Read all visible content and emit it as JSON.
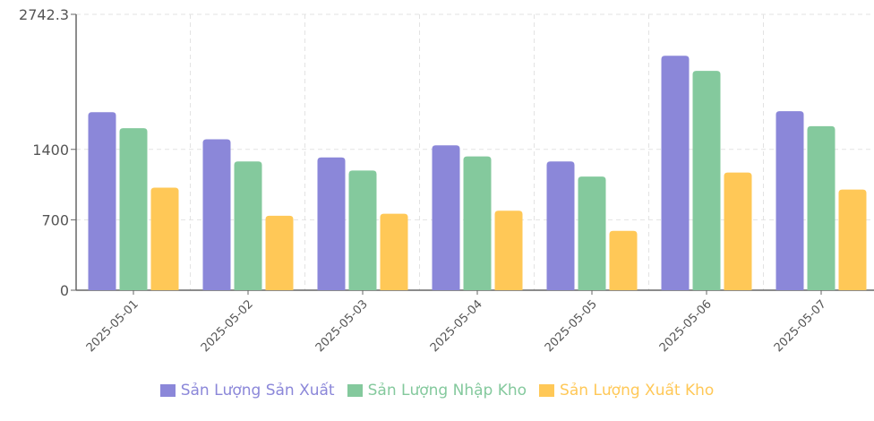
{
  "chart_data": {
    "type": "bar",
    "categories": [
      "2025-05-01",
      "2025-05-02",
      "2025-05-03",
      "2025-05-04",
      "2025-05-05",
      "2025-05-06",
      "2025-05-07"
    ],
    "series": [
      {
        "name": "Sản Lượng Sản Xuất",
        "color": "#8b87d9",
        "values": [
          1770,
          1500,
          1320,
          1440,
          1280,
          2330,
          1780
        ]
      },
      {
        "name": "Sản Lượng Nhập Kho",
        "color": "#84c99d",
        "values": [
          1610,
          1280,
          1190,
          1330,
          1130,
          2180,
          1630
        ]
      },
      {
        "name": "Sản Lượng Xuất Kho",
        "color": "#ffc857",
        "values": [
          1020,
          740,
          760,
          790,
          590,
          1170,
          1000
        ]
      }
    ],
    "yticks": [
      "0",
      "700",
      "1400",
      "2742.3"
    ],
    "ylim": [
      0,
      2742.3
    ],
    "grid": true,
    "legend_position": "bottom-center"
  }
}
